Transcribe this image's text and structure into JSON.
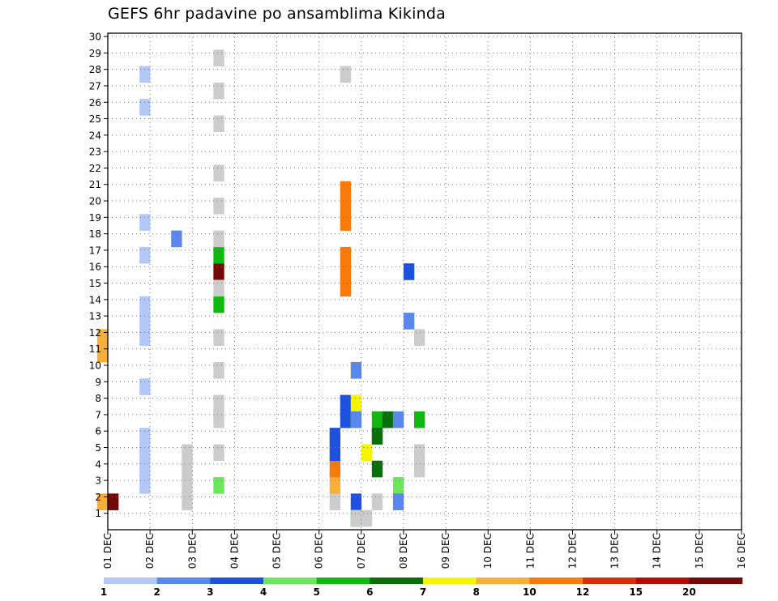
{
  "chart_data": {
    "type": "heatmap",
    "title": "GEFS 6hr padavine po ansamblima Kikinda",
    "xlabel": "",
    "ylabel": "",
    "x_tick_labels": [
      "01 DEC",
      "02 DEC",
      "03 DEC",
      "04 DEC",
      "05 DEC",
      "06 DEC",
      "07 DEC",
      "08 DEC",
      "09 DEC",
      "10 DEC",
      "11 DEC",
      "12 DEC",
      "13 DEC",
      "14 DEC",
      "15 DEC",
      "16 DEC"
    ],
    "y_tick_labels": [
      "1",
      "2",
      "3",
      "4",
      "5",
      "6",
      "7",
      "8",
      "9",
      "10",
      "11",
      "12",
      "13",
      "14",
      "15",
      "16",
      "17",
      "18",
      "19",
      "20",
      "21",
      "22",
      "23",
      "24",
      "25",
      "26",
      "27",
      "28",
      "29",
      "30"
    ],
    "xlim": [
      0,
      60
    ],
    "ylim": [
      0,
      30
    ],
    "time_step_hours": 6,
    "grid": true,
    "legend_position": "bottom",
    "color_scale": {
      "labels": [
        "1",
        "2",
        "3",
        "4",
        "5",
        "6",
        "7",
        "8",
        "10",
        "12",
        "15",
        "20"
      ],
      "colors": [
        "#b4c8f8",
        "#5a87ec",
        "#1d50dc",
        "#6ce65a",
        "#10b910",
        "#0a6e0a",
        "#f5f500",
        "#f8af3a",
        "#f87a0a",
        "#dc2d0a",
        "#b90a0a",
        "#730a0a"
      ]
    },
    "cells": [
      [
        0,
        0,
        1
      ],
      [
        0,
        12,
        1
      ],
      [
        0,
        11,
        1
      ],
      [
        3,
        0,
        2
      ],
      [
        3,
        0,
        3
      ],
      [
        3,
        0,
        4
      ],
      [
        3,
        0,
        5
      ],
      [
        3,
        0,
        8
      ],
      [
        3,
        0,
        11
      ],
      [
        3,
        0,
        12
      ],
      [
        3,
        0,
        13
      ],
      [
        3,
        0,
        16
      ],
      [
        3,
        0,
        18
      ],
      [
        3,
        0,
        25
      ],
      [
        3,
        0,
        27
      ],
      [
        6,
        1,
        17
      ],
      [
        7,
        12,
        1
      ],
      [
        7,
        12,
        2
      ],
      [
        7,
        12,
        3
      ],
      [
        7,
        12,
        4
      ],
      [
        10,
        12,
        4
      ],
      [
        10,
        12,
        6
      ],
      [
        10,
        12,
        7
      ],
      [
        10,
        4,
        13
      ],
      [
        10,
        11,
        15
      ],
      [
        10,
        4,
        16
      ],
      [
        10,
        12,
        9
      ],
      [
        10,
        3,
        2
      ],
      [
        10,
        12,
        11
      ],
      [
        10,
        12,
        14
      ],
      [
        10,
        12,
        17
      ],
      [
        10,
        12,
        19
      ],
      [
        10,
        12,
        21
      ],
      [
        10,
        12,
        24
      ],
      [
        10,
        12,
        26
      ],
      [
        10,
        12,
        28
      ],
      [
        -1,
        7,
        1
      ],
      [
        -1,
        7,
        10
      ],
      [
        -1,
        7,
        11
      ],
      [
        21,
        12,
        1
      ],
      [
        21,
        7,
        2
      ],
      [
        21,
        8,
        3
      ],
      [
        21,
        2,
        4
      ],
      [
        21,
        2,
        5
      ],
      [
        22,
        2,
        6
      ],
      [
        22,
        2,
        7
      ],
      [
        22,
        8,
        14
      ],
      [
        22,
        8,
        15
      ],
      [
        22,
        8,
        16
      ],
      [
        22,
        8,
        18
      ],
      [
        22,
        8,
        19
      ],
      [
        22,
        8,
        20
      ],
      [
        22,
        12,
        27
      ],
      [
        23,
        2,
        1
      ],
      [
        23,
        4,
        0
      ],
      [
        23,
        12,
        0
      ],
      [
        23,
        6,
        9
      ],
      [
        23,
        3,
        6
      ],
      [
        23,
        1,
        9
      ],
      [
        23,
        6,
        7
      ],
      [
        23,
        1,
        6
      ],
      [
        24,
        6,
        4
      ],
      [
        24,
        12,
        0
      ],
      [
        25,
        5,
        3
      ],
      [
        25,
        4,
        6
      ],
      [
        25,
        4,
        5
      ],
      [
        25,
        5,
        5
      ],
      [
        25,
        12,
        1
      ],
      [
        26,
        5,
        6
      ],
      [
        27,
        1,
        6
      ],
      [
        27,
        3,
        2
      ],
      [
        27,
        1,
        1
      ],
      [
        28,
        1,
        12
      ],
      [
        28,
        2,
        15
      ],
      [
        29,
        12,
        3
      ],
      [
        29,
        12,
        4
      ],
      [
        29,
        4,
        6
      ],
      [
        29,
        12,
        11
      ]
    ]
  }
}
